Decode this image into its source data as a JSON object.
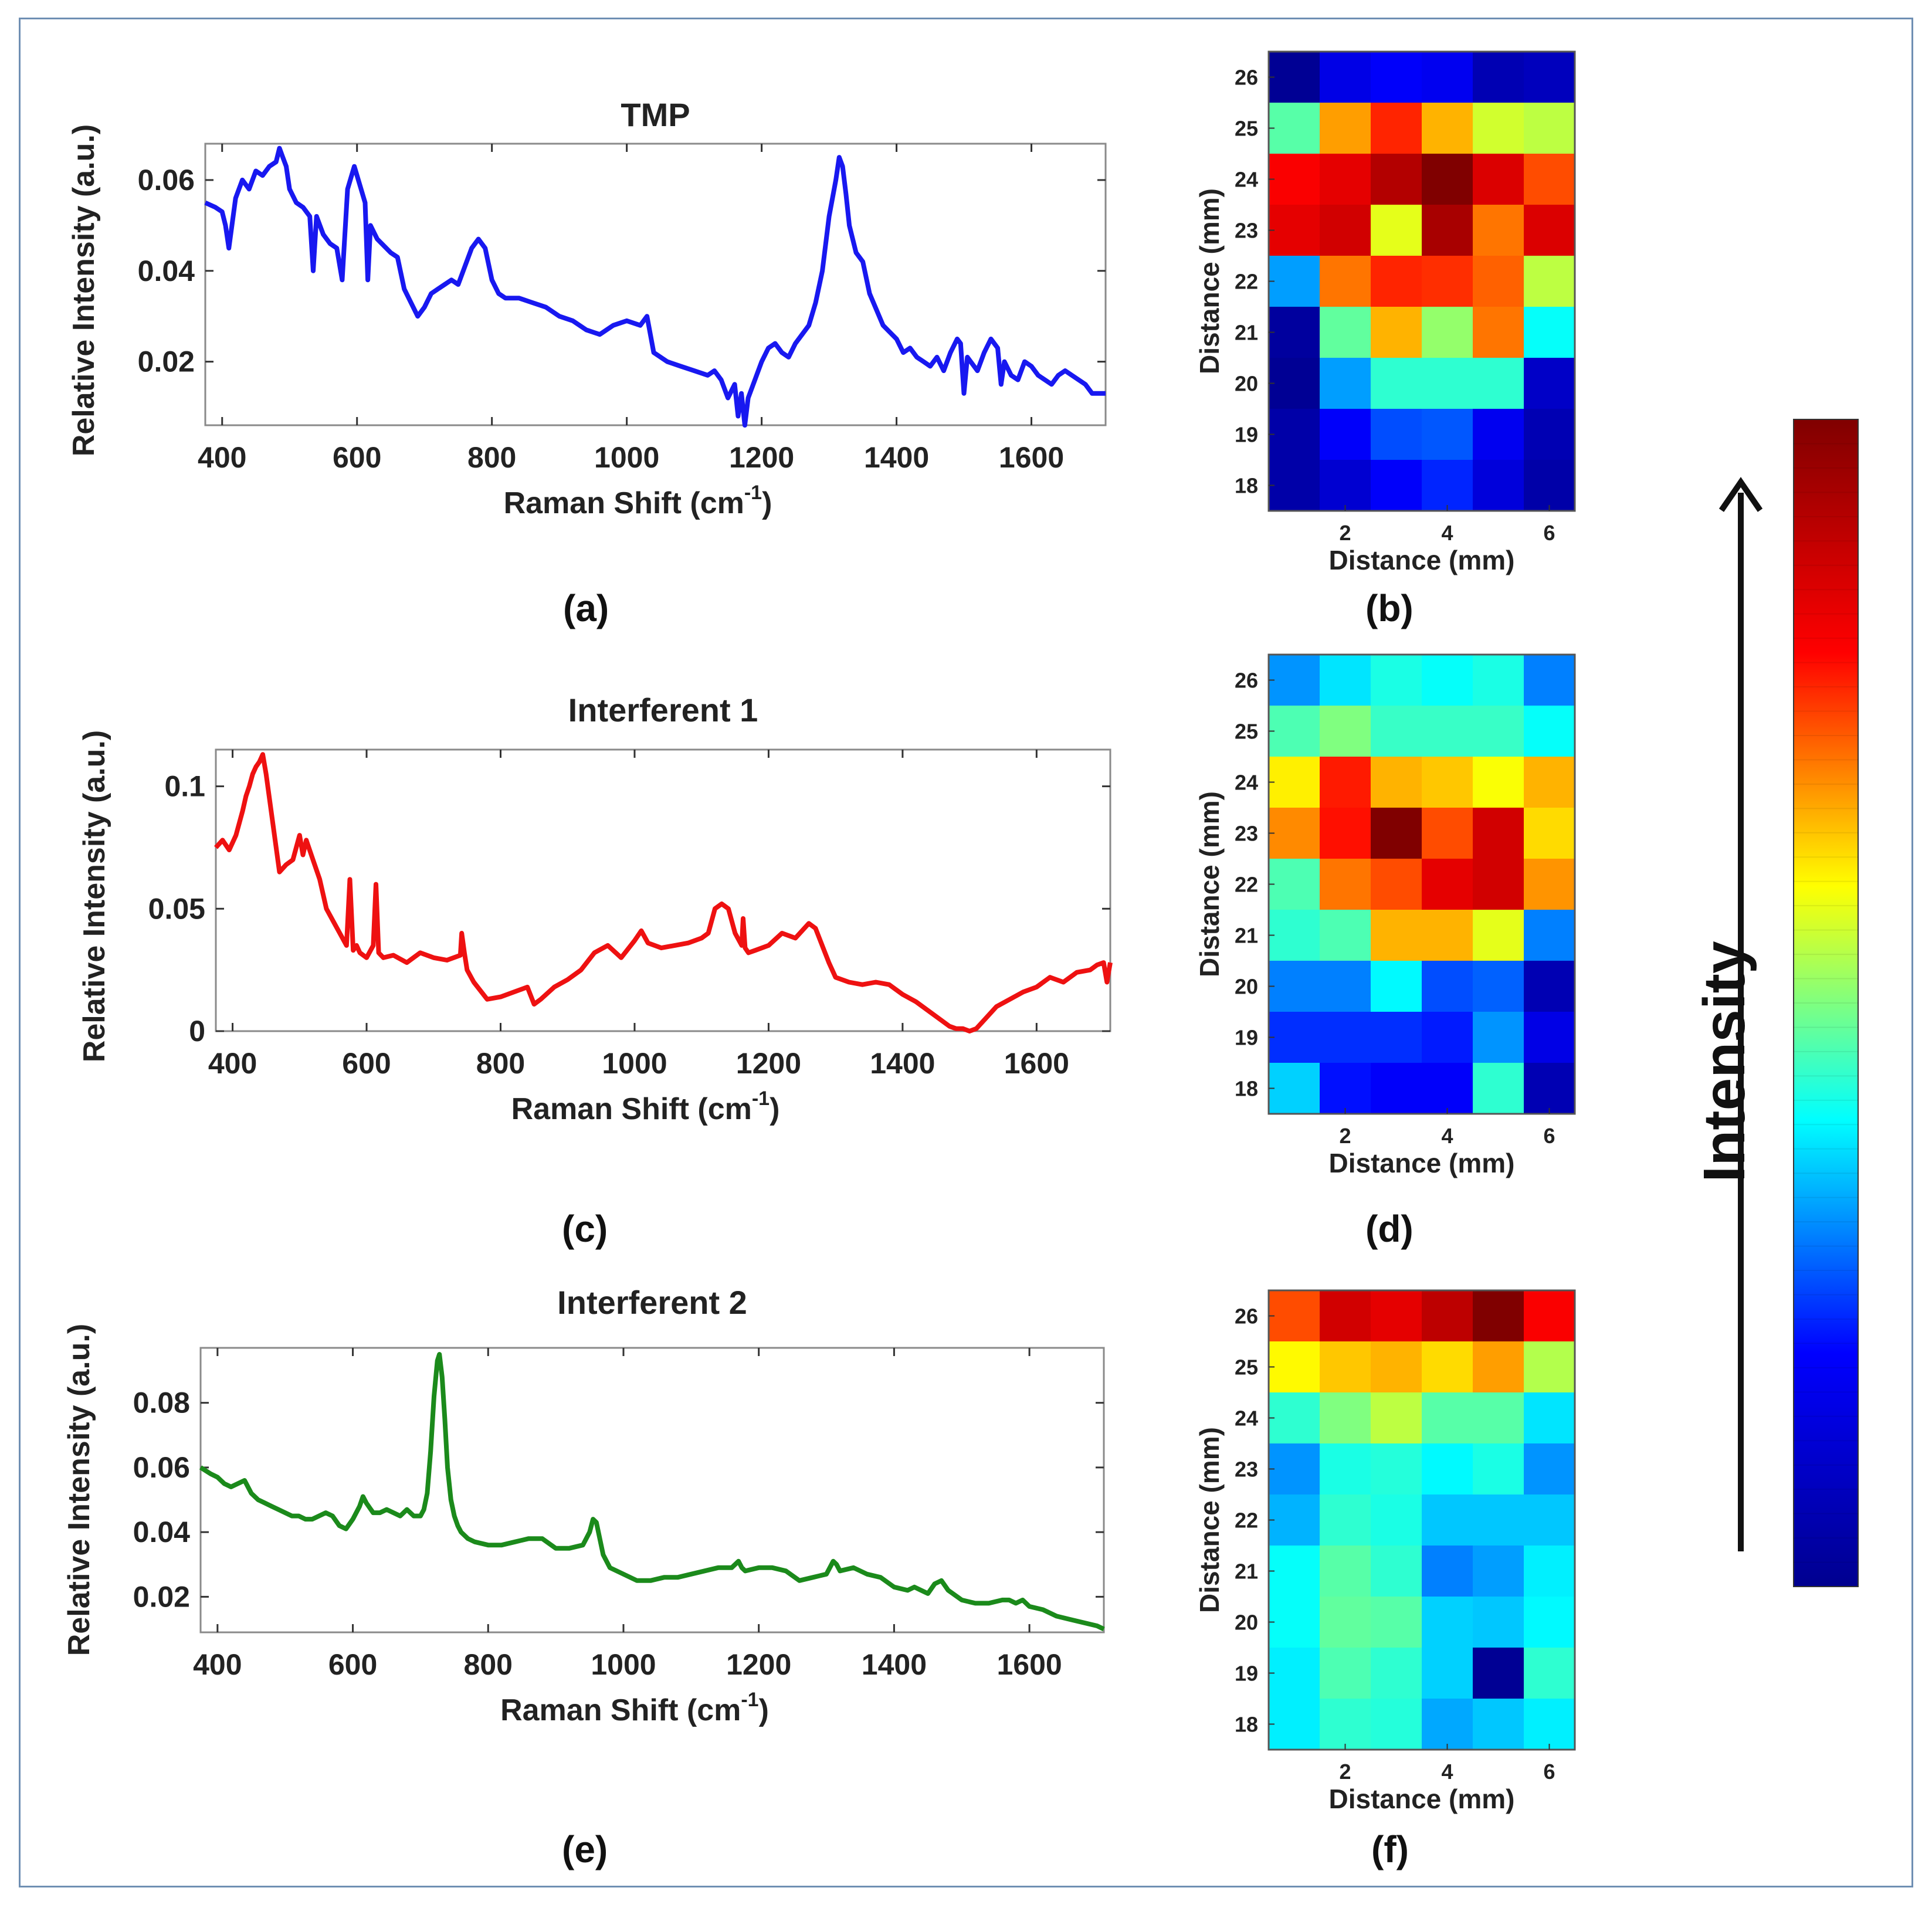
{
  "chart_data": [
    {
      "id": "a",
      "type": "line",
      "title": "TMP",
      "xlabel": "Raman Shift (cm",
      "xlabel_sup": "-1",
      "xlabel_end": ")",
      "ylabel": "Relative Intensity (a.u.)",
      "panel_label": "(a)",
      "color": "#1818f0",
      "xlim": [
        375,
        1710
      ],
      "ylim": [
        0.006,
        0.068
      ],
      "xticks": [
        400,
        600,
        800,
        1000,
        1200,
        1400,
        1600
      ],
      "xtick_labels": [
        "400",
        "600",
        "800",
        "1000",
        "1200",
        "1400",
        "1600"
      ],
      "yticks": [
        0.02,
        0.04,
        0.06
      ],
      "ytick_labels": [
        "0.02",
        "0.04",
        "0.06"
      ],
      "x": [
        375,
        390,
        400,
        405,
        410,
        420,
        430,
        440,
        450,
        460,
        470,
        480,
        485,
        490,
        495,
        500,
        510,
        520,
        530,
        535,
        540,
        550,
        560,
        570,
        578,
        582,
        586,
        590,
        596,
        600,
        606,
        612,
        616,
        620,
        630,
        650,
        660,
        670,
        680,
        690,
        700,
        710,
        720,
        730,
        740,
        750,
        760,
        770,
        780,
        790,
        800,
        810,
        820,
        840,
        860,
        880,
        900,
        920,
        940,
        960,
        980,
        1000,
        1020,
        1030,
        1040,
        1060,
        1080,
        1100,
        1120,
        1130,
        1140,
        1150,
        1160,
        1165,
        1170,
        1175,
        1180,
        1190,
        1200,
        1210,
        1220,
        1230,
        1240,
        1250,
        1260,
        1270,
        1280,
        1290,
        1300,
        1310,
        1315,
        1320,
        1325,
        1330,
        1340,
        1350,
        1360,
        1380,
        1400,
        1410,
        1420,
        1430,
        1440,
        1450,
        1460,
        1470,
        1480,
        1490,
        1495,
        1500,
        1505,
        1510,
        1520,
        1530,
        1540,
        1550,
        1555,
        1560,
        1570,
        1580,
        1590,
        1600,
        1610,
        1620,
        1630,
        1640,
        1650,
        1660,
        1670,
        1680,
        1690,
        1700,
        1710
      ],
      "values": [
        0.055,
        0.054,
        0.053,
        0.05,
        0.045,
        0.056,
        0.06,
        0.058,
        0.062,
        0.061,
        0.063,
        0.064,
        0.067,
        0.065,
        0.063,
        0.058,
        0.055,
        0.054,
        0.052,
        0.04,
        0.052,
        0.048,
        0.046,
        0.045,
        0.038,
        0.048,
        0.058,
        0.06,
        0.063,
        0.061,
        0.058,
        0.055,
        0.038,
        0.05,
        0.047,
        0.044,
        0.043,
        0.036,
        0.033,
        0.03,
        0.032,
        0.035,
        0.036,
        0.037,
        0.038,
        0.037,
        0.041,
        0.045,
        0.047,
        0.045,
        0.038,
        0.035,
        0.034,
        0.034,
        0.033,
        0.032,
        0.03,
        0.029,
        0.027,
        0.026,
        0.028,
        0.029,
        0.028,
        0.03,
        0.022,
        0.02,
        0.019,
        0.018,
        0.017,
        0.018,
        0.016,
        0.012,
        0.015,
        0.008,
        0.013,
        0.005,
        0.012,
        0.016,
        0.02,
        0.023,
        0.024,
        0.022,
        0.021,
        0.024,
        0.026,
        0.028,
        0.033,
        0.04,
        0.052,
        0.06,
        0.065,
        0.063,
        0.057,
        0.05,
        0.044,
        0.042,
        0.035,
        0.028,
        0.025,
        0.022,
        0.023,
        0.021,
        0.02,
        0.019,
        0.021,
        0.018,
        0.022,
        0.025,
        0.024,
        0.013,
        0.021,
        0.02,
        0.018,
        0.022,
        0.025,
        0.023,
        0.015,
        0.02,
        0.017,
        0.016,
        0.02,
        0.019,
        0.017,
        0.016,
        0.015,
        0.017,
        0.018,
        0.017,
        0.016,
        0.015,
        0.013,
        0.013,
        0.013
      ]
    },
    {
      "id": "c",
      "type": "line",
      "title": "Interferent 1",
      "xlabel": "Raman Shift (cm",
      "xlabel_sup": "-1",
      "xlabel_end": ")",
      "ylabel": "Relative Intensity (a.u.)",
      "panel_label": "(c)",
      "color": "#ee1111",
      "xlim": [
        375,
        1710
      ],
      "ylim": [
        0,
        0.115
      ],
      "xticks": [
        400,
        600,
        800,
        1000,
        1200,
        1400,
        1600
      ],
      "xtick_labels": [
        "400",
        "600",
        "800",
        "1000",
        "1200",
        "1400",
        "1600"
      ],
      "yticks": [
        0,
        0.05,
        0.1
      ],
      "ytick_labels": [
        "0",
        "0.05",
        "0.1"
      ],
      "x": [
        375,
        385,
        395,
        405,
        410,
        415,
        420,
        425,
        430,
        435,
        440,
        445,
        450,
        455,
        460,
        470,
        480,
        490,
        500,
        505,
        510,
        520,
        530,
        540,
        550,
        560,
        570,
        575,
        580,
        585,
        590,
        600,
        610,
        614,
        618,
        625,
        640,
        660,
        680,
        700,
        720,
        740,
        742,
        746,
        750,
        760,
        780,
        800,
        820,
        840,
        850,
        860,
        880,
        900,
        920,
        940,
        960,
        980,
        1000,
        1010,
        1020,
        1040,
        1060,
        1080,
        1100,
        1110,
        1120,
        1130,
        1140,
        1150,
        1160,
        1162,
        1165,
        1170,
        1180,
        1200,
        1220,
        1240,
        1260,
        1270,
        1280,
        1290,
        1300,
        1320,
        1340,
        1360,
        1380,
        1400,
        1420,
        1440,
        1460,
        1470,
        1480,
        1490,
        1500,
        1510,
        1520,
        1540,
        1560,
        1580,
        1600,
        1620,
        1640,
        1660,
        1680,
        1690,
        1700,
        1705,
        1710
      ],
      "values": [
        0.075,
        0.078,
        0.074,
        0.08,
        0.085,
        0.09,
        0.096,
        0.1,
        0.105,
        0.108,
        0.11,
        0.113,
        0.105,
        0.095,
        0.085,
        0.065,
        0.068,
        0.07,
        0.08,
        0.072,
        0.078,
        0.07,
        0.062,
        0.05,
        0.045,
        0.04,
        0.035,
        0.062,
        0.033,
        0.035,
        0.032,
        0.03,
        0.035,
        0.06,
        0.032,
        0.03,
        0.031,
        0.028,
        0.032,
        0.03,
        0.029,
        0.031,
        0.04,
        0.032,
        0.025,
        0.02,
        0.013,
        0.014,
        0.016,
        0.018,
        0.011,
        0.013,
        0.018,
        0.021,
        0.025,
        0.032,
        0.035,
        0.03,
        0.037,
        0.041,
        0.036,
        0.034,
        0.035,
        0.036,
        0.038,
        0.04,
        0.05,
        0.052,
        0.05,
        0.04,
        0.035,
        0.046,
        0.034,
        0.032,
        0.033,
        0.035,
        0.04,
        0.038,
        0.044,
        0.042,
        0.035,
        0.028,
        0.022,
        0.02,
        0.019,
        0.02,
        0.019,
        0.015,
        0.012,
        0.008,
        0.004,
        0.002,
        0.001,
        0.001,
        0.0,
        0.001,
        0.004,
        0.01,
        0.013,
        0.016,
        0.018,
        0.022,
        0.02,
        0.024,
        0.025,
        0.027,
        0.028,
        0.02,
        0.028
      ]
    },
    {
      "id": "e",
      "type": "line",
      "title": "Interferent 2",
      "xlabel": "Raman Shift (cm",
      "xlabel_sup": "-1",
      "xlabel_end": ")",
      "ylabel": "Relative Intensity (a.u.)",
      "panel_label": "(e)",
      "color": "#1b8a1b",
      "xlim": [
        375,
        1710
      ],
      "ylim": [
        0.009,
        0.097
      ],
      "xticks": [
        400,
        600,
        800,
        1000,
        1200,
        1400,
        1600
      ],
      "xtick_labels": [
        "400",
        "600",
        "800",
        "1000",
        "1200",
        "1400",
        "1600"
      ],
      "yticks": [
        0.02,
        0.04,
        0.06,
        0.08
      ],
      "ytick_labels": [
        "0.02",
        "0.04",
        "0.06",
        "0.08"
      ],
      "x": [
        375,
        390,
        400,
        410,
        420,
        430,
        440,
        450,
        460,
        470,
        480,
        490,
        500,
        510,
        520,
        530,
        540,
        550,
        560,
        570,
        580,
        590,
        600,
        610,
        615,
        620,
        630,
        640,
        650,
        660,
        670,
        680,
        690,
        700,
        705,
        710,
        715,
        720,
        725,
        728,
        732,
        736,
        740,
        745,
        750,
        755,
        760,
        770,
        780,
        800,
        820,
        840,
        860,
        880,
        900,
        920,
        940,
        950,
        955,
        960,
        965,
        970,
        980,
        1000,
        1020,
        1040,
        1060,
        1080,
        1100,
        1120,
        1140,
        1160,
        1170,
        1175,
        1180,
        1200,
        1220,
        1240,
        1260,
        1280,
        1300,
        1310,
        1315,
        1320,
        1340,
        1360,
        1380,
        1400,
        1420,
        1430,
        1440,
        1450,
        1460,
        1470,
        1480,
        1500,
        1520,
        1540,
        1560,
        1570,
        1580,
        1590,
        1600,
        1620,
        1640,
        1660,
        1680,
        1700,
        1710
      ],
      "values": [
        0.06,
        0.058,
        0.057,
        0.055,
        0.054,
        0.055,
        0.056,
        0.052,
        0.05,
        0.049,
        0.048,
        0.047,
        0.046,
        0.045,
        0.045,
        0.044,
        0.044,
        0.045,
        0.046,
        0.045,
        0.042,
        0.041,
        0.044,
        0.048,
        0.051,
        0.049,
        0.046,
        0.046,
        0.047,
        0.046,
        0.045,
        0.047,
        0.045,
        0.045,
        0.047,
        0.052,
        0.065,
        0.082,
        0.093,
        0.095,
        0.088,
        0.075,
        0.06,
        0.05,
        0.045,
        0.042,
        0.04,
        0.038,
        0.037,
        0.036,
        0.036,
        0.037,
        0.038,
        0.038,
        0.035,
        0.035,
        0.036,
        0.04,
        0.044,
        0.043,
        0.038,
        0.033,
        0.029,
        0.027,
        0.025,
        0.025,
        0.026,
        0.026,
        0.027,
        0.028,
        0.029,
        0.029,
        0.031,
        0.029,
        0.028,
        0.029,
        0.029,
        0.028,
        0.025,
        0.026,
        0.027,
        0.031,
        0.03,
        0.028,
        0.029,
        0.027,
        0.026,
        0.023,
        0.022,
        0.023,
        0.022,
        0.021,
        0.024,
        0.025,
        0.022,
        0.019,
        0.018,
        0.018,
        0.019,
        0.019,
        0.018,
        0.019,
        0.017,
        0.016,
        0.014,
        0.013,
        0.012,
        0.011,
        0.01
      ]
    },
    {
      "id": "b",
      "type": "heatmap",
      "xlabel": "Distance (mm)",
      "ylabel": "Distance (mm)",
      "panel_label": "(b)",
      "xtick_labels": [
        "2",
        "4",
        "6"
      ],
      "ytick_labels": [
        "26",
        "25",
        "24",
        "23",
        "22",
        "21",
        "20",
        "19",
        "18"
      ],
      "values": [
        [
          0.02,
          0.1,
          0.12,
          0.11,
          0.05,
          0.06
        ],
        [
          0.46,
          0.72,
          0.84,
          0.7,
          0.58,
          0.56
        ],
        [
          0.88,
          0.9,
          0.95,
          1.0,
          0.91,
          0.8
        ],
        [
          0.9,
          0.92,
          0.6,
          0.96,
          0.76,
          0.91
        ],
        [
          0.28,
          0.76,
          0.84,
          0.83,
          0.78,
          0.56
        ],
        [
          0.03,
          0.47,
          0.7,
          0.52,
          0.76,
          0.38
        ],
        [
          0.02,
          0.28,
          0.42,
          0.42,
          0.42,
          0.07
        ],
        [
          0.04,
          0.12,
          0.2,
          0.21,
          0.11,
          0.05
        ],
        [
          0.04,
          0.08,
          0.12,
          0.16,
          0.09,
          0.04
        ]
      ]
    },
    {
      "id": "d",
      "type": "heatmap",
      "xlabel": "Distance (mm)",
      "ylabel": "Distance (mm)",
      "panel_label": "(d)",
      "xtick_labels": [
        "2",
        "4",
        "6"
      ],
      "ytick_labels": [
        "26",
        "25",
        "24",
        "23",
        "22",
        "21",
        "20",
        "19",
        "18"
      ],
      "values": [
        [
          0.27,
          0.35,
          0.4,
          0.38,
          0.4,
          0.25
        ],
        [
          0.45,
          0.5,
          0.43,
          0.43,
          0.43,
          0.38
        ],
        [
          0.64,
          0.85,
          0.7,
          0.68,
          0.62,
          0.7
        ],
        [
          0.74,
          0.86,
          1.0,
          0.8,
          0.92,
          0.66
        ],
        [
          0.45,
          0.76,
          0.8,
          0.9,
          0.92,
          0.73
        ],
        [
          0.42,
          0.45,
          0.7,
          0.7,
          0.6,
          0.25
        ],
        [
          0.25,
          0.25,
          0.37,
          0.2,
          0.22,
          0.05
        ],
        [
          0.17,
          0.17,
          0.17,
          0.15,
          0.27,
          0.1
        ],
        [
          0.33,
          0.14,
          0.12,
          0.12,
          0.42,
          0.05
        ]
      ]
    },
    {
      "id": "f",
      "type": "heatmap",
      "xlabel": "Distance (mm)",
      "ylabel": "Distance (mm)",
      "panel_label": "(f)",
      "xtick_labels": [
        "2",
        "4",
        "6"
      ],
      "ytick_labels": [
        "26",
        "25",
        "24",
        "23",
        "22",
        "21",
        "20",
        "19",
        "18"
      ],
      "values": [
        [
          0.8,
          0.92,
          0.9,
          0.94,
          1.0,
          0.88
        ],
        [
          0.63,
          0.68,
          0.7,
          0.66,
          0.72,
          0.55
        ],
        [
          0.42,
          0.5,
          0.56,
          0.46,
          0.46,
          0.35
        ],
        [
          0.27,
          0.4,
          0.41,
          0.37,
          0.4,
          0.27
        ],
        [
          0.3,
          0.42,
          0.4,
          0.32,
          0.32,
          0.32
        ],
        [
          0.38,
          0.46,
          0.42,
          0.25,
          0.28,
          0.36
        ],
        [
          0.38,
          0.47,
          0.46,
          0.33,
          0.32,
          0.37
        ],
        [
          0.36,
          0.45,
          0.42,
          0.33,
          0.02,
          0.42
        ],
        [
          0.36,
          0.42,
          0.41,
          0.29,
          0.32,
          0.36
        ]
      ]
    }
  ],
  "colorbar": {
    "label": "Intensity",
    "colors": [
      "#00008f",
      "#0000ff",
      "#00ffff",
      "#ffff00",
      "#ff0000",
      "#800000"
    ]
  }
}
